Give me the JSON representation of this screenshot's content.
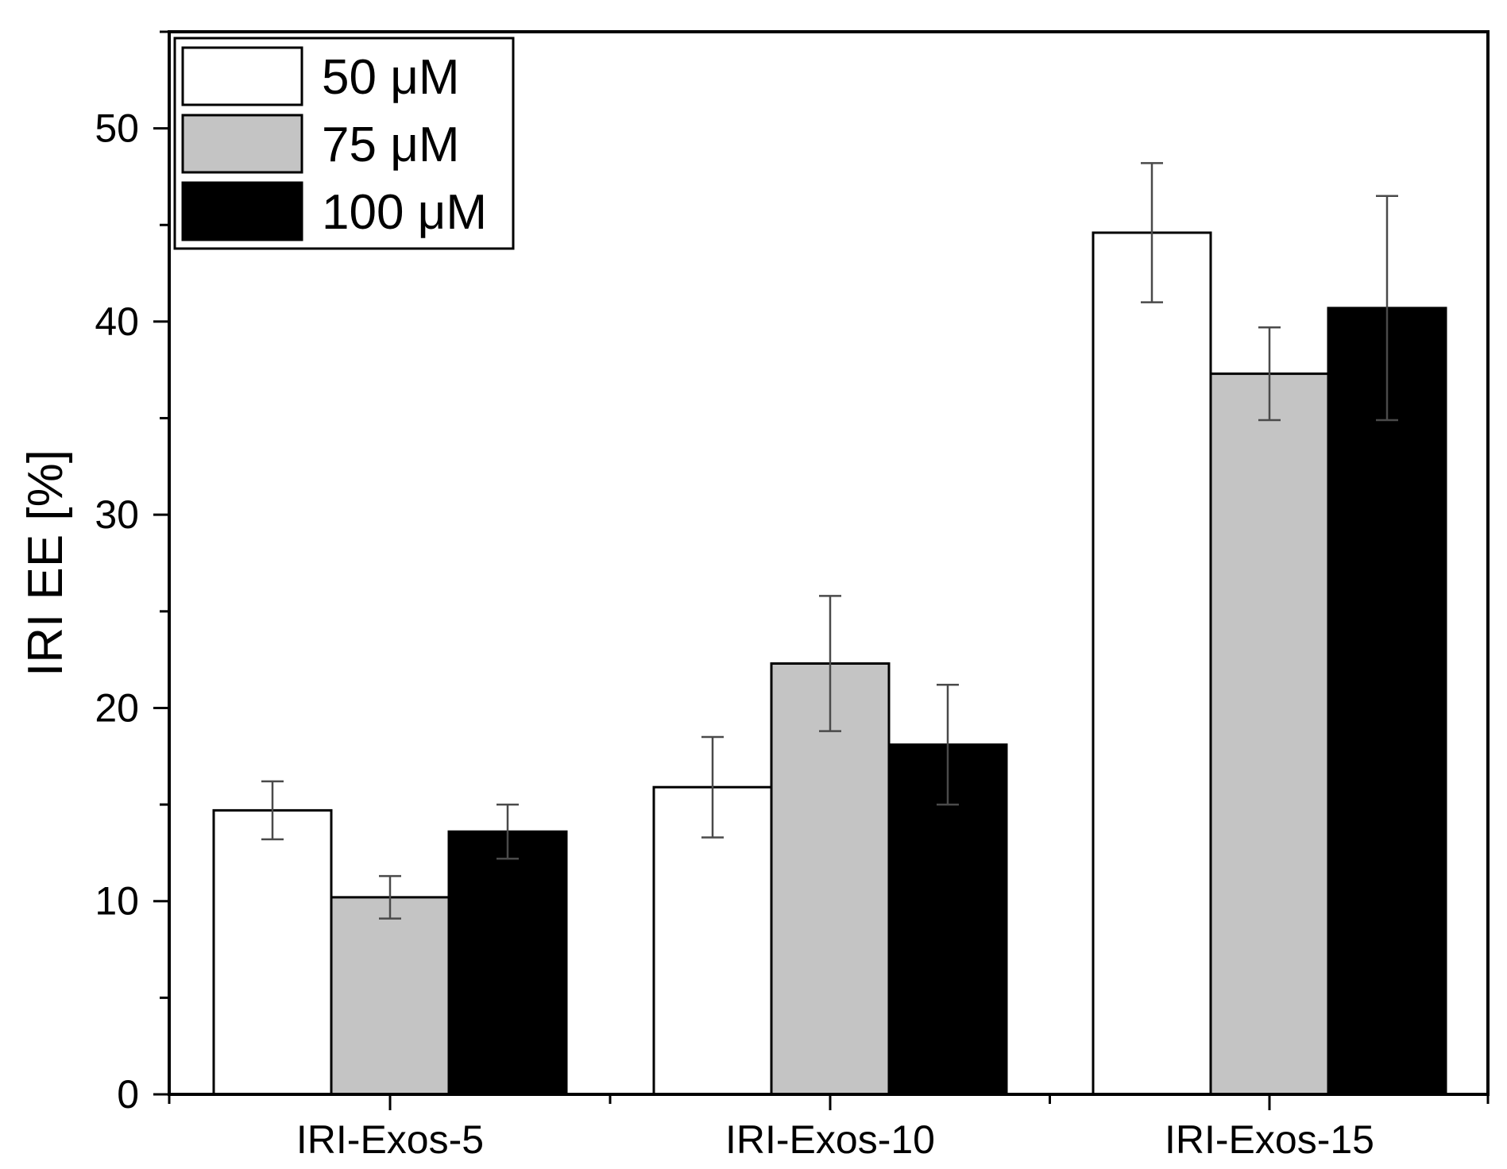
{
  "chart_data": {
    "type": "bar",
    "title": "",
    "xlabel": "",
    "ylabel": "IRI EE [%]",
    "ylim": [
      0,
      55
    ],
    "yticks": [
      0,
      10,
      20,
      30,
      40,
      50
    ],
    "grid": false,
    "legend_position": "top-left",
    "categories": [
      "IRI-Exos-5",
      "IRI-Exos-10",
      "IRI-Exos-15"
    ],
    "series": [
      {
        "name": "50 μM",
        "color": "#ffffff",
        "values": [
          14.7,
          15.9,
          44.6
        ],
        "errors": [
          1.5,
          2.6,
          3.6
        ]
      },
      {
        "name": "75 μM",
        "color": "#c4c4c4",
        "values": [
          10.2,
          22.3,
          37.3
        ],
        "errors": [
          1.1,
          3.5,
          2.4
        ]
      },
      {
        "name": "100 μM",
        "color": "#000000",
        "values": [
          13.6,
          18.1,
          40.7
        ],
        "errors": [
          1.4,
          3.1,
          5.8
        ]
      }
    ]
  }
}
